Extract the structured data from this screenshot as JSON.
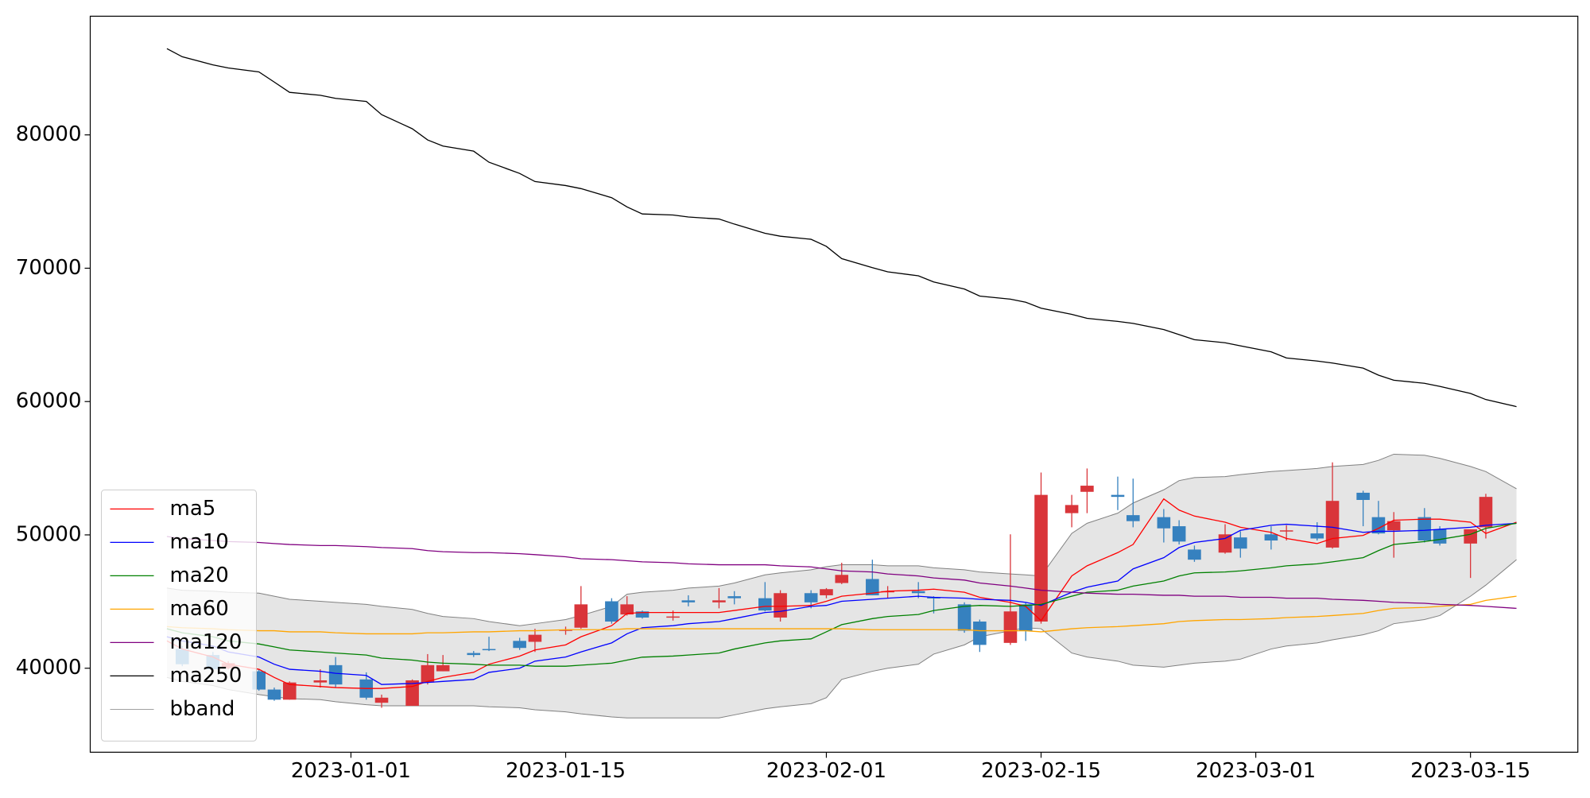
{
  "chart_data": {
    "type": "candlestick",
    "x": [
      "2022-12-20",
      "2022-12-21",
      "2022-12-23",
      "2022-12-24",
      "2022-12-26",
      "2022-12-27",
      "2022-12-28",
      "2022-12-30",
      "2022-12-31",
      "2023-01-02",
      "2023-01-03",
      "2023-01-05",
      "2023-01-06",
      "2023-01-07",
      "2023-01-09",
      "2023-01-10",
      "2023-01-12",
      "2023-01-13",
      "2023-01-15",
      "2023-01-16",
      "2023-01-18",
      "2023-01-19",
      "2023-01-20",
      "2023-01-22",
      "2023-01-23",
      "2023-01-25",
      "2023-01-26",
      "2023-01-28",
      "2023-01-29",
      "2023-01-31",
      "2023-02-01",
      "2023-02-02",
      "2023-02-04",
      "2023-02-05",
      "2023-02-07",
      "2023-02-08",
      "2023-02-10",
      "2023-02-11",
      "2023-02-13",
      "2023-02-14",
      "2023-02-15",
      "2023-02-17",
      "2023-02-18",
      "2023-02-20",
      "2023-02-21",
      "2023-02-23",
      "2023-02-24",
      "2023-02-25",
      "2023-02-27",
      "2023-02-28",
      "2023-03-02",
      "2023-03-03",
      "2023-03-05",
      "2023-03-06",
      "2023-03-08",
      "2023-03-09",
      "2023-03-10",
      "2023-03-12",
      "2023-03-13",
      "2023-03-15",
      "2023-03-16",
      "2023-03-18"
    ],
    "open": [
      null,
      41440,
      40990,
      40000,
      39770,
      38400,
      37640,
      38930,
      40230,
      39160,
      37410,
      37180,
      38930,
      39770,
      41140,
      41440,
      42050,
      41980,
      42810,
      43040,
      45020,
      44030,
      44260,
      43800,
      45090,
      44940,
      45400,
      45250,
      43800,
      45630,
      45470,
      46390,
      46690,
      45700,
      45780,
      45320,
      44790,
      43500,
      41900,
      44790,
      43500,
      51630,
      53230,
      53000,
      51480,
      51330,
      50650,
      48900,
      48670,
      49810,
      50040,
      50270,
      50110,
      49050,
      53160,
      51330,
      50340,
      51330,
      50420,
      49350,
      50570,
      null
    ],
    "high": [
      null,
      41670,
      41220,
      40530,
      39920,
      38550,
      39010,
      39920,
      40840,
      39690,
      38020,
      39160,
      41060,
      40990,
      41290,
      42360,
      42280,
      42960,
      43120,
      46160,
      45250,
      45400,
      44330,
      44330,
      45470,
      46010,
      45780,
      46460,
      45850,
      45850,
      46010,
      47910,
      48140,
      46160,
      46460,
      45400,
      44940,
      43650,
      50040,
      44940,
      54680,
      53000,
      54980,
      54370,
      54220,
      51940,
      51100,
      49200,
      50800,
      50270,
      50650,
      50720,
      50950,
      55440,
      53310,
      52550,
      51710,
      52010,
      50650,
      50420,
      53080,
      null
    ],
    "low": [
      null,
      40150,
      39770,
      39920,
      38320,
      37560,
      37640,
      38550,
      38550,
      37640,
      37030,
      37180,
      38780,
      39770,
      40840,
      41290,
      41370,
      41220,
      42510,
      42960,
      43340,
      43950,
      43720,
      43570,
      44640,
      44490,
      44790,
      44260,
      43500,
      44490,
      45250,
      46310,
      45470,
      45250,
      45250,
      44110,
      42660,
      41220,
      41750,
      42050,
      43340,
      50570,
      51630,
      51860,
      50570,
      49430,
      49280,
      47980,
      48590,
      48290,
      48900,
      49580,
      49580,
      48970,
      50650,
      50040,
      48290,
      49430,
      49200,
      46770,
      49730,
      null
    ],
    "close": [
      null,
      40300,
      39920,
      40380,
      38400,
      37640,
      38930,
      39090,
      38780,
      37790,
      37790,
      39090,
      40230,
      40230,
      40990,
      41370,
      41520,
      42510,
      42890,
      44790,
      43500,
      44790,
      43800,
      43880,
      44940,
      45090,
      45250,
      44330,
      45630,
      44940,
      45930,
      47000,
      45470,
      45780,
      45630,
      45250,
      42810,
      41750,
      44260,
      42810,
      53000,
      52240,
      53690,
      52850,
      51030,
      50490,
      49500,
      48140,
      50040,
      48970,
      49580,
      50340,
      49730,
      52550,
      52620,
      50110,
      51030,
      49580,
      49350,
      50420,
      52850,
      null
    ],
    "up_color": "#d9353a",
    "down_color": "#3681bf",
    "series": [
      {
        "name": "ma5",
        "color": "#ff0000",
        "values": [
          42050,
          41440,
          40840,
          40300,
          39920,
          39310,
          38780,
          38630,
          38550,
          38480,
          38480,
          38630,
          39010,
          39310,
          39690,
          40300,
          40910,
          41370,
          41750,
          42360,
          43190,
          44110,
          44180,
          44180,
          44180,
          44180,
          44330,
          44640,
          44640,
          44710,
          45020,
          45400,
          45630,
          45780,
          45850,
          45930,
          45700,
          45320,
          44940,
          44640,
          43570,
          46920,
          47680,
          48670,
          49280,
          52700,
          51860,
          51410,
          50950,
          50570,
          50190,
          49730,
          49350,
          49730,
          49960,
          50490,
          51100,
          51180,
          51180,
          50950,
          50110,
          50950
        ]
      },
      {
        "name": "ma10",
        "color": "#0000ff",
        "values": [
          42360,
          42050,
          41670,
          41220,
          40840,
          40300,
          39920,
          39770,
          39620,
          39460,
          38780,
          38860,
          38930,
          39010,
          39160,
          39690,
          40000,
          40530,
          40840,
          41220,
          41900,
          42580,
          43040,
          43190,
          43340,
          43500,
          43720,
          44180,
          44260,
          44640,
          44710,
          45020,
          45170,
          45250,
          45400,
          45320,
          45250,
          45170,
          45090,
          44940,
          44710,
          45700,
          46080,
          46540,
          47450,
          48290,
          49050,
          49430,
          49730,
          50340,
          50720,
          50800,
          50650,
          50570,
          50190,
          50270,
          50270,
          50340,
          50420,
          50570,
          50720,
          50870
        ]
      },
      {
        "name": "ma20",
        "color": "#008000",
        "values": [
          42960,
          42660,
          42360,
          42050,
          41820,
          41600,
          41370,
          41220,
          41140,
          40990,
          40760,
          40610,
          40460,
          40380,
          40300,
          40230,
          40230,
          40150,
          40150,
          40230,
          40380,
          40610,
          40830,
          40910,
          40990,
          41140,
          41440,
          41900,
          42050,
          42200,
          42730,
          43270,
          43720,
          43880,
          44030,
          44330,
          44640,
          44710,
          44640,
          44710,
          44790,
          45400,
          45700,
          45850,
          46160,
          46540,
          46920,
          47150,
          47220,
          47300,
          47530,
          47680,
          47830,
          47980,
          48290,
          48820,
          49280,
          49500,
          49660,
          50040,
          50490,
          50870
        ]
      },
      {
        "name": "ma60",
        "color": "#ffa500",
        "values": [
          43120,
          43040,
          42960,
          42890,
          42810,
          42810,
          42730,
          42730,
          42660,
          42580,
          42580,
          42580,
          42660,
          42660,
          42730,
          42730,
          42810,
          42810,
          42890,
          42890,
          42890,
          42960,
          42960,
          42960,
          42960,
          42960,
          42960,
          42960,
          42960,
          42960,
          42960,
          42960,
          42890,
          42890,
          42890,
          42890,
          42890,
          42810,
          42810,
          42810,
          42730,
          42960,
          43040,
          43120,
          43190,
          43340,
          43500,
          43570,
          43650,
          43650,
          43720,
          43800,
          43880,
          43950,
          44110,
          44330,
          44490,
          44560,
          44640,
          44790,
          45090,
          45400
        ]
      },
      {
        "name": "ma120",
        "color": "#800080",
        "values": [
          49880,
          49730,
          49580,
          49500,
          49430,
          49350,
          49280,
          49200,
          49200,
          49120,
          49050,
          48970,
          48820,
          48740,
          48670,
          48670,
          48590,
          48520,
          48360,
          48210,
          48140,
          48060,
          47980,
          47910,
          47830,
          47760,
          47760,
          47760,
          47680,
          47600,
          47450,
          47300,
          47220,
          47070,
          46920,
          46770,
          46610,
          46390,
          46160,
          46010,
          45850,
          45700,
          45630,
          45550,
          45550,
          45470,
          45470,
          45400,
          45400,
          45320,
          45320,
          45250,
          45250,
          45170,
          45090,
          45020,
          44940,
          44870,
          44790,
          44710,
          44640,
          44490
        ]
      },
      {
        "name": "ma250",
        "color": "#000000",
        "values": [
          86470,
          85860,
          85250,
          85020,
          84720,
          83960,
          83190,
          82970,
          82740,
          82510,
          81520,
          80460,
          79620,
          79160,
          78780,
          77950,
          77110,
          76500,
          76200,
          75970,
          75290,
          74600,
          74070,
          73990,
          73840,
          73690,
          73310,
          72620,
          72400,
          72170,
          71640,
          70720,
          70040,
          69730,
          69430,
          68970,
          68440,
          67910,
          67680,
          67450,
          67000,
          66540,
          66240,
          66010,
          65860,
          65400,
          65020,
          64640,
          64410,
          64180,
          63730,
          63270,
          63040,
          62890,
          62510,
          61980,
          61600,
          61370,
          61140,
          60610,
          60150,
          59620
        ]
      },
      {
        "name": "bband",
        "color": "#808080",
        "fill": "#e5e5e5",
        "upper": [
          46010,
          45850,
          45780,
          45700,
          45630,
          45400,
          45170,
          45020,
          44940,
          44790,
          44640,
          44410,
          44110,
          43880,
          43720,
          43500,
          43190,
          43340,
          43650,
          43950,
          44640,
          45550,
          45700,
          45850,
          46010,
          46160,
          46390,
          47000,
          47150,
          47380,
          47610,
          47760,
          47760,
          47680,
          47680,
          47530,
          47380,
          47220,
          47070,
          47000,
          46920,
          50110,
          50870,
          51630,
          52390,
          53380,
          54070,
          54300,
          54370,
          54520,
          54750,
          54830,
          54980,
          55130,
          55280,
          55590,
          56050,
          55970,
          55740,
          55130,
          54750,
          53460
        ],
        "lower": [
          39310,
          39010,
          38700,
          38400,
          38020,
          37870,
          37720,
          37640,
          37490,
          37260,
          37180,
          37180,
          37180,
          37180,
          37180,
          37110,
          37030,
          36880,
          36730,
          36580,
          36350,
          36270,
          36270,
          36270,
          36270,
          36270,
          36500,
          36960,
          37110,
          37340,
          37790,
          39160,
          39770,
          40000,
          40300,
          41060,
          41750,
          42360,
          42810,
          43040,
          42960,
          41140,
          40840,
          40530,
          40230,
          40080,
          40230,
          40380,
          40530,
          40680,
          41440,
          41670,
          41900,
          42130,
          42510,
          42810,
          43340,
          43650,
          43950,
          45400,
          46230,
          48140
        ]
      }
    ],
    "xlim": [
      "2022-12-15",
      "2023-03-22"
    ],
    "xticks": [
      "2023-01-01",
      "2023-01-15",
      "2023-02-01",
      "2023-02-15",
      "2023-03-01",
      "2023-03-15"
    ],
    "ylim": [
      33700,
      88900
    ],
    "yticks": [
      40000,
      50000,
      60000,
      70000,
      80000
    ],
    "grid": false,
    "legend": "lower left"
  }
}
